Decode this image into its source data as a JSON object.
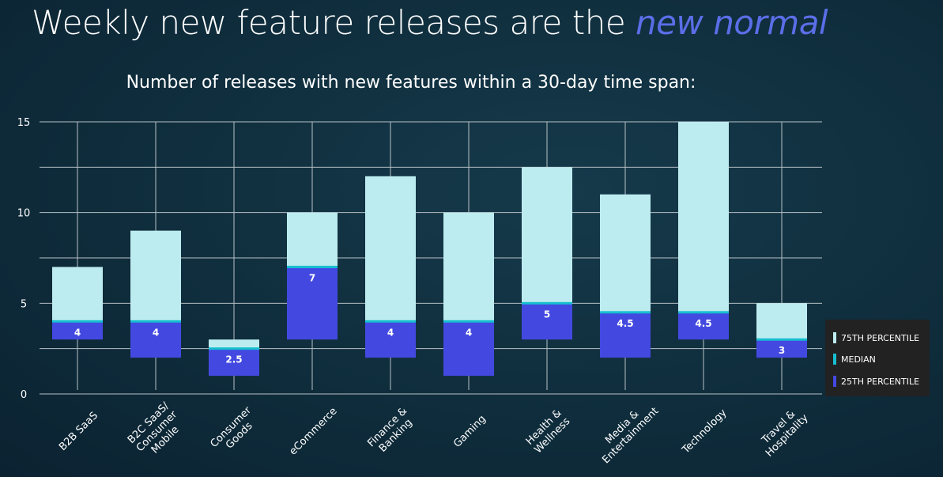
{
  "title": {
    "main": "Weekly new feature releases are the ",
    "emphasis": "new normal"
  },
  "chart_data": {
    "type": "bar",
    "title": "Number of releases with new features within a 30-day time span:",
    "categories": [
      [
        "B2B SaaS"
      ],
      [
        "B2C SaaS/",
        "Consumer",
        "Mobile"
      ],
      [
        "Consumer",
        "Goods"
      ],
      [
        "eCommerce"
      ],
      [
        "Finance &",
        "Banking"
      ],
      [
        "Gaming"
      ],
      [
        "Health &",
        "Wellness"
      ],
      [
        "Media &",
        "Entertainment"
      ],
      [
        "Technology"
      ],
      [
        "Travel &",
        "Hospitality"
      ]
    ],
    "series": [
      {
        "name": "75TH PERCENTILE",
        "color": "#bdecf0",
        "values": [
          7,
          9,
          3,
          10,
          12,
          10,
          12.5,
          11,
          15,
          5
        ]
      },
      {
        "name": "MEDIAN",
        "color": "#16bfd0",
        "values": [
          4,
          4,
          2.5,
          7,
          4,
          4,
          5,
          4.5,
          4.5,
          3
        ]
      },
      {
        "name": "25TH PERCENTILE",
        "color": "#4349e0",
        "values": [
          3,
          2,
          1,
          3,
          2,
          1,
          3,
          2,
          3,
          2
        ]
      }
    ],
    "data_labels": [
      "4",
      "4",
      "2.5",
      "7",
      "4",
      "4",
      "5",
      "4.5",
      "4.5",
      "3"
    ],
    "ylim": [
      0,
      15
    ],
    "yticks": [
      "0",
      "5",
      "10",
      "15"
    ],
    "grid": true,
    "legend": "right"
  }
}
